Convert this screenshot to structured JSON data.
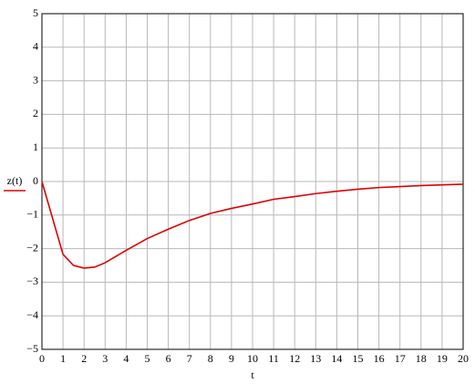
{
  "chart_data": {
    "type": "line",
    "x_label": "t",
    "x": [
      0,
      1,
      1.5,
      2,
      2.5,
      3,
      4,
      5,
      6,
      7,
      8,
      9,
      10,
      11,
      12,
      13,
      14,
      15,
      16,
      17,
      18,
      19,
      20
    ],
    "series": [
      {
        "name": "z(t)",
        "color": "#e00000",
        "values": [
          0,
          -2.17,
          -2.5,
          -2.58,
          -2.55,
          -2.42,
          -2.05,
          -1.7,
          -1.42,
          -1.16,
          -0.95,
          -0.8,
          -0.67,
          -0.53,
          -0.45,
          -0.36,
          -0.29,
          -0.23,
          -0.18,
          -0.15,
          -0.12,
          -0.1,
          -0.08
        ]
      }
    ],
    "xlim": [
      0,
      20
    ],
    "xticks": [
      0,
      1,
      2,
      3,
      4,
      5,
      6,
      7,
      8,
      9,
      10,
      11,
      12,
      13,
      14,
      15,
      16,
      17,
      18,
      19,
      20
    ],
    "ylim": [
      -5,
      5
    ],
    "yticks": [
      {
        "value": -5,
        "label": "−5"
      },
      {
        "value": -4,
        "label": "−4"
      },
      {
        "value": -3,
        "label": "−3"
      },
      {
        "value": -2,
        "label": "−2"
      },
      {
        "value": -1,
        "label": "−1"
      },
      0,
      1,
      2,
      3,
      4,
      5
    ],
    "grid": true
  }
}
